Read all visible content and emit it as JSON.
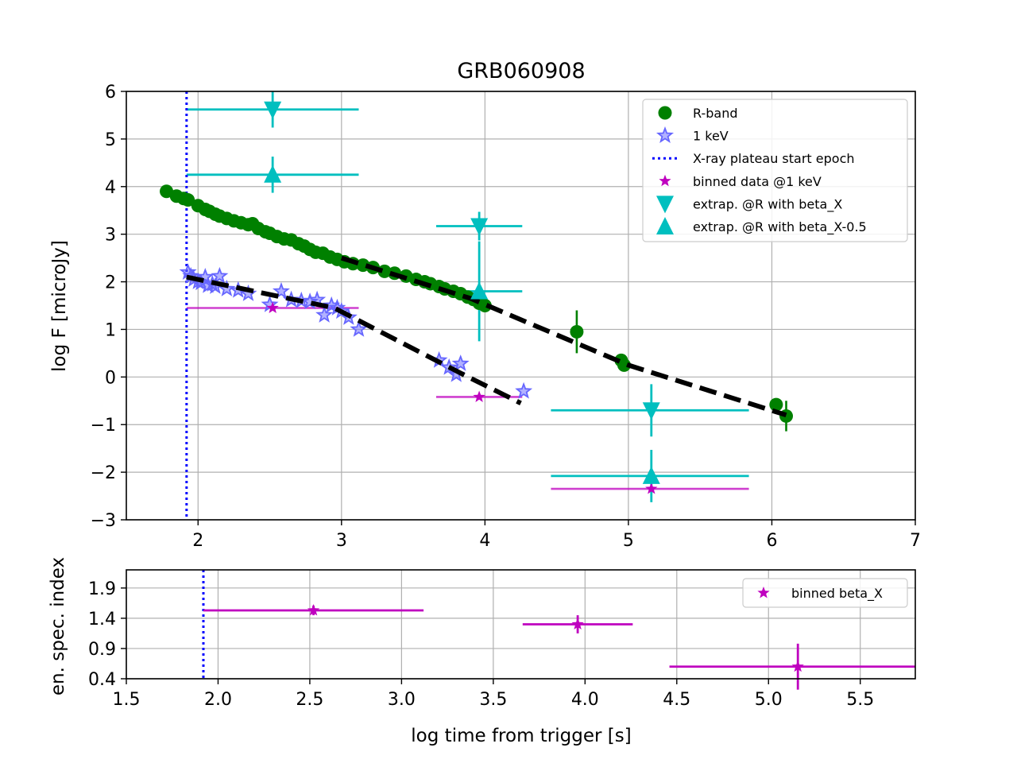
{
  "chart_data": [
    {
      "type": "scatter",
      "title": "GRB060908",
      "xlabel": "",
      "ylabel": "log F [microJy]",
      "xlim": [
        1.5,
        7
      ],
      "ylim": [
        -3,
        6
      ],
      "xticks": [
        2,
        3,
        4,
        5,
        6,
        7
      ],
      "yticks": [
        6,
        5,
        4,
        3,
        2,
        1,
        0,
        -1,
        -2,
        -3
      ],
      "xtick_labels": [
        "2",
        "3",
        "4",
        "5",
        "6",
        "7"
      ],
      "ytick_labels": [
        "6",
        "5",
        "4",
        "3",
        "2",
        "1",
        "0",
        "−1",
        "−2",
        "−3"
      ],
      "grid": true,
      "legend_placement": "top-right",
      "plateau_start": 1.92,
      "series": [
        {
          "name": "R-band",
          "kind": "circle",
          "color": "#008000",
          "x": [
            1.78,
            1.85,
            1.9,
            1.93,
            2.0,
            2.05,
            2.08,
            2.12,
            2.15,
            2.2,
            2.25,
            2.3,
            2.35,
            2.38,
            2.42,
            2.47,
            2.5,
            2.55,
            2.6,
            2.65,
            2.7,
            2.74,
            2.78,
            2.82,
            2.87,
            2.92,
            2.97,
            3.02,
            3.08,
            3.15,
            3.22,
            3.3,
            3.37,
            3.45,
            3.52,
            3.58,
            3.62,
            3.68,
            3.72,
            3.78,
            3.83,
            3.88,
            3.92,
            3.96,
            4.0
          ],
          "y": [
            3.9,
            3.8,
            3.75,
            3.72,
            3.6,
            3.52,
            3.48,
            3.42,
            3.38,
            3.33,
            3.28,
            3.24,
            3.2,
            3.22,
            3.12,
            3.05,
            3.02,
            2.95,
            2.9,
            2.88,
            2.8,
            2.75,
            2.68,
            2.62,
            2.6,
            2.52,
            2.47,
            2.42,
            2.38,
            2.35,
            2.3,
            2.22,
            2.18,
            2.12,
            2.05,
            2.0,
            1.96,
            1.9,
            1.85,
            1.8,
            1.75,
            1.68,
            1.63,
            1.55,
            1.5
          ],
          "points": [
            {
              "x": 4.64,
              "y": 0.95,
              "yerr": 0.45
            },
            {
              "x": 4.95,
              "y": 0.35,
              "yerr": 0.08
            },
            {
              "x": 4.97,
              "y": 0.25,
              "yerr": 0.06
            },
            {
              "x": 6.03,
              "y": -0.58,
              "yerr": 0.1
            },
            {
              "x": 6.1,
              "y": -0.82,
              "yerr": 0.32
            }
          ]
        },
        {
          "name": "1 keV",
          "kind": "star-open",
          "color": "#6666ff",
          "x": [
            1.93,
            1.95,
            1.97,
            2.0,
            2.02,
            2.05,
            2.07,
            2.1,
            2.12,
            2.15,
            2.2,
            2.28,
            2.35,
            2.5,
            2.58,
            2.65,
            2.72,
            2.78,
            2.83,
            2.88,
            2.93,
            2.97,
            3.0,
            3.05,
            3.12,
            3.68,
            3.75,
            3.8,
            3.83,
            4.27
          ],
          "y": [
            2.2,
            2.12,
            2.05,
            2.0,
            1.98,
            2.1,
            1.92,
            1.95,
            1.9,
            2.12,
            1.85,
            1.82,
            1.75,
            1.52,
            1.8,
            1.62,
            1.6,
            1.58,
            1.62,
            1.3,
            1.5,
            1.45,
            1.38,
            1.25,
            1.0,
            0.35,
            0.2,
            0.05,
            0.28,
            -0.3
          ]
        },
        {
          "name": "binned data @1 keV",
          "kind": "star-filled",
          "color": "#bf00bf",
          "points": [
            {
              "x": 2.52,
              "y": 1.45,
              "xmin": 1.92,
              "xmax": 3.12
            },
            {
              "x": 3.96,
              "y": -0.42,
              "xmin": 3.66,
              "xmax": 4.26
            },
            {
              "x": 5.16,
              "y": -2.35,
              "xmin": 4.46,
              "xmax": 5.84
            }
          ]
        },
        {
          "name": "extrap. @R with beta_X",
          "kind": "triangle-down",
          "color": "#00bfbf",
          "points": [
            {
              "x": 2.52,
              "y": 5.62,
              "xmin": 1.92,
              "xmax": 3.12,
              "yerr": 0.38
            },
            {
              "x": 3.96,
              "y": 3.17,
              "xmin": 3.66,
              "xmax": 4.26,
              "yerr": 0.3
            },
            {
              "x": 5.16,
              "y": -0.7,
              "xmin": 4.46,
              "xmax": 5.84,
              "yerr": 0.55
            }
          ]
        },
        {
          "name": "extrap. @R with beta_X-0.5",
          "kind": "triangle-up",
          "color": "#00bfbf",
          "points": [
            {
              "x": 2.52,
              "y": 4.25,
              "xmin": 1.92,
              "xmax": 3.12,
              "yerr": 0.38
            },
            {
              "x": 3.96,
              "y": 1.8,
              "xmin": 3.66,
              "xmax": 4.26,
              "yerr": 1.05
            },
            {
              "x": 5.16,
              "y": -2.08,
              "xmin": 4.46,
              "xmax": 5.84,
              "yerr": 0.55
            }
          ]
        }
      ],
      "legend": [
        {
          "label": "R-band",
          "kind": "circle",
          "color": "#008000"
        },
        {
          "label": "1 keV",
          "kind": "star-open",
          "color": "#6666ff"
        },
        {
          "label": "X-ray plateau start epoch",
          "kind": "dotted-line",
          "color": "#0000ff"
        },
        {
          "label": "binned data @1 keV",
          "kind": "star-filled",
          "color": "#bf00bf"
        },
        {
          "label": "extrap. @R with beta_X",
          "kind": "triangle-down",
          "color": "#00bfbf"
        },
        {
          "label": "extrap. @R with beta_X-0.5",
          "kind": "triangle-up",
          "color": "#00bfbf"
        }
      ],
      "fits": [
        {
          "color": "#000000",
          "style": "dashed",
          "x": [
            1.92,
            2.95,
            3.85,
            4.25
          ],
          "y": [
            2.1,
            1.45,
            0.05,
            -0.55
          ]
        },
        {
          "color": "#000000",
          "style": "dashed",
          "x": [
            3.0,
            3.9,
            5.0,
            6.1
          ],
          "y": [
            2.5,
            1.65,
            0.25,
            -0.8
          ]
        }
      ]
    },
    {
      "type": "scatter",
      "title": "",
      "xlabel": "log time from trigger [s]",
      "ylabel": "en. spec. index",
      "xlim": [
        1.5,
        5.8
      ],
      "ylim": [
        0.4,
        2.2
      ],
      "xticks": [
        1.5,
        2.0,
        2.5,
        3.0,
        3.5,
        4.0,
        4.5,
        5.0,
        5.5
      ],
      "yticks": [
        1.9,
        1.4,
        0.9,
        0.4
      ],
      "xtick_labels": [
        "1.5",
        "2.0",
        "2.5",
        "3.0",
        "3.5",
        "4.0",
        "4.5",
        "5.0",
        "5.5"
      ],
      "ytick_labels": [
        "1.9",
        "1.4",
        "0.9",
        "0.4"
      ],
      "grid": true,
      "legend_placement": "top-right",
      "plateau_start": 1.92,
      "series": [
        {
          "name": "binned beta_X",
          "kind": "star-filled",
          "color": "#bf00bf",
          "points": [
            {
              "x": 2.52,
              "y": 1.53,
              "xmin": 1.92,
              "xmax": 3.12,
              "yerr": 0.08
            },
            {
              "x": 3.96,
              "y": 1.3,
              "xmin": 3.66,
              "xmax": 4.26,
              "yerr": 0.15
            },
            {
              "x": 5.16,
              "y": 0.6,
              "xmin": 4.46,
              "xmax": 5.84,
              "yerr": 0.38
            }
          ]
        }
      ],
      "legend": [
        {
          "label": "binned beta_X",
          "kind": "star-filled",
          "color": "#bf00bf"
        }
      ]
    }
  ]
}
